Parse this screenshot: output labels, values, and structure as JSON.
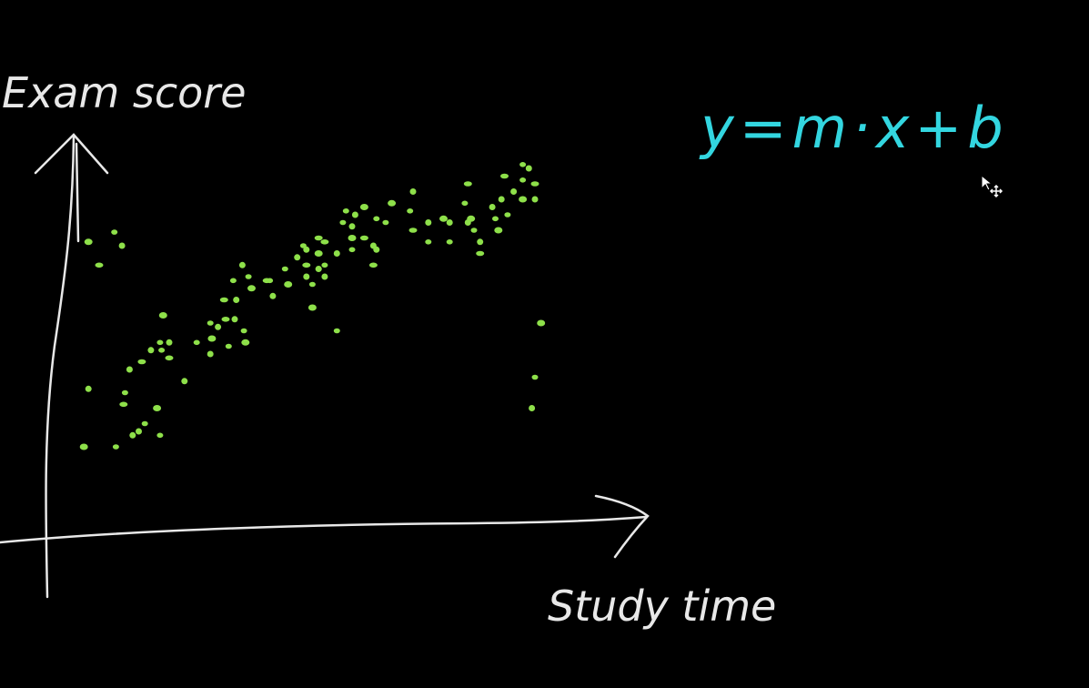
{
  "colors": {
    "background": "#000000",
    "axis": "#e8e8e8",
    "points": "#8ee04a",
    "equation": "#33d6e0"
  },
  "chart_data": {
    "type": "scatter",
    "title": "",
    "xlabel": "Study time",
    "ylabel": "Exam score",
    "annotation": "y=m·x+b",
    "grid": false,
    "legend": "none",
    "points": [
      [
        13.5,
        73
      ],
      [
        22,
        75.5
      ],
      [
        24.5,
        72
      ],
      [
        17,
        67
      ],
      [
        13.5,
        35
      ],
      [
        25.5,
        34
      ],
      [
        12,
        20
      ],
      [
        22.5,
        20
      ],
      [
        28,
        23
      ],
      [
        25,
        31
      ],
      [
        30,
        24
      ],
      [
        32,
        26
      ],
      [
        36,
        30
      ],
      [
        37,
        23
      ],
      [
        27,
        40
      ],
      [
        31,
        42
      ],
      [
        34,
        45
      ],
      [
        37.5,
        45
      ],
      [
        38,
        54
      ],
      [
        37,
        47
      ],
      [
        40,
        47
      ],
      [
        40,
        43
      ],
      [
        45,
        37
      ],
      [
        49,
        47
      ],
      [
        54,
        48
      ],
      [
        53.5,
        52
      ],
      [
        56,
        51
      ],
      [
        58.5,
        53
      ],
      [
        61.5,
        53
      ],
      [
        64.5,
        50
      ],
      [
        65,
        47
      ],
      [
        59.5,
        46
      ],
      [
        53.5,
        44
      ],
      [
        58,
        58
      ],
      [
        62,
        58
      ],
      [
        61,
        63
      ],
      [
        67,
        61
      ],
      [
        66,
        64
      ],
      [
        64,
        67
      ],
      [
        72,
        63
      ],
      [
        74,
        59
      ],
      [
        73,
        63
      ],
      [
        79,
        62
      ],
      [
        78,
        66
      ],
      [
        85,
        64
      ],
      [
        85,
        67
      ],
      [
        82,
        69
      ],
      [
        87,
        62
      ],
      [
        87,
        56
      ],
      [
        84,
        72
      ],
      [
        85,
        71
      ],
      [
        89,
        74
      ],
      [
        89,
        66
      ],
      [
        89,
        66
      ],
      [
        89,
        70
      ],
      [
        91,
        67
      ],
      [
        91,
        64
      ],
      [
        91,
        73
      ],
      [
        95,
        70
      ],
      [
        100,
        71
      ],
      [
        100,
        74
      ],
      [
        97,
        78
      ],
      [
        100,
        77
      ],
      [
        104,
        74
      ],
      [
        101,
        80
      ],
      [
        98,
        81
      ],
      [
        104,
        82
      ],
      [
        108,
        79
      ],
      [
        107,
        72
      ],
      [
        107,
        67
      ],
      [
        108,
        71
      ],
      [
        111,
        78
      ],
      [
        113,
        83
      ],
      [
        119,
        81
      ],
      [
        120,
        86
      ],
      [
        120,
        76
      ],
      [
        125,
        78
      ],
      [
        125,
        73
      ],
      [
        130,
        79
      ],
      [
        132,
        73
      ],
      [
        132,
        78
      ],
      [
        138,
        88
      ],
      [
        138,
        78
      ],
      [
        137,
        83
      ],
      [
        139,
        79
      ],
      [
        140,
        76
      ],
      [
        142,
        73
      ],
      [
        142,
        70
      ],
      [
        146,
        82
      ],
      [
        147,
        79
      ],
      [
        148,
        76
      ],
      [
        151,
        80
      ],
      [
        149,
        84
      ],
      [
        150,
        90
      ],
      [
        153,
        86
      ],
      [
        156,
        93
      ],
      [
        156,
        84
      ],
      [
        156,
        89
      ],
      [
        158,
        92
      ],
      [
        160,
        88
      ],
      [
        160,
        84
      ],
      [
        95,
        50
      ],
      [
        162,
        52
      ],
      [
        160,
        38
      ],
      [
        159,
        30
      ]
    ]
  }
}
